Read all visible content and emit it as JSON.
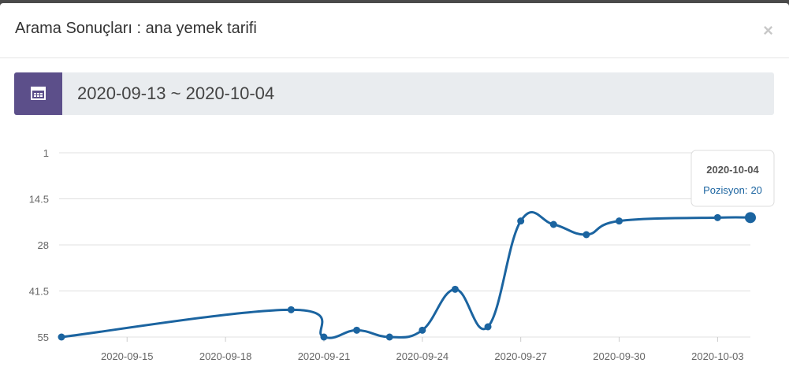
{
  "header": {
    "title": "Arama Sonuçları : ana yemek tarifi",
    "close": "×"
  },
  "date_range": "2020-09-13 ~ 2020-10-04",
  "chart_data": {
    "type": "line",
    "x": [
      "2020-09-13",
      "2020-09-20",
      "2020-09-21",
      "2020-09-22",
      "2020-09-23",
      "2020-09-24",
      "2020-09-25",
      "2020-09-26",
      "2020-09-27",
      "2020-09-28",
      "2020-09-29",
      "2020-09-30",
      "2020-10-03",
      "2020-10-04"
    ],
    "series": [
      {
        "name": "Pozisyon",
        "color": "#1b64a0",
        "values": [
          55,
          47,
          55,
          53,
          55,
          53,
          41,
          52,
          21,
          22,
          25,
          21,
          20,
          20
        ]
      }
    ],
    "xlim": [
      "2020-09-13",
      "2020-10-04"
    ],
    "xticks": [
      "2020-09-15",
      "2020-09-18",
      "2020-09-21",
      "2020-09-24",
      "2020-09-27",
      "2020-09-30",
      "2020-10-03"
    ],
    "ylim": [
      1,
      55
    ],
    "y_reversed": true,
    "yticks": [
      1,
      14.5,
      28,
      41.5,
      55
    ],
    "grid": true,
    "tooltip": {
      "label": "Pozisyon:"
    }
  }
}
